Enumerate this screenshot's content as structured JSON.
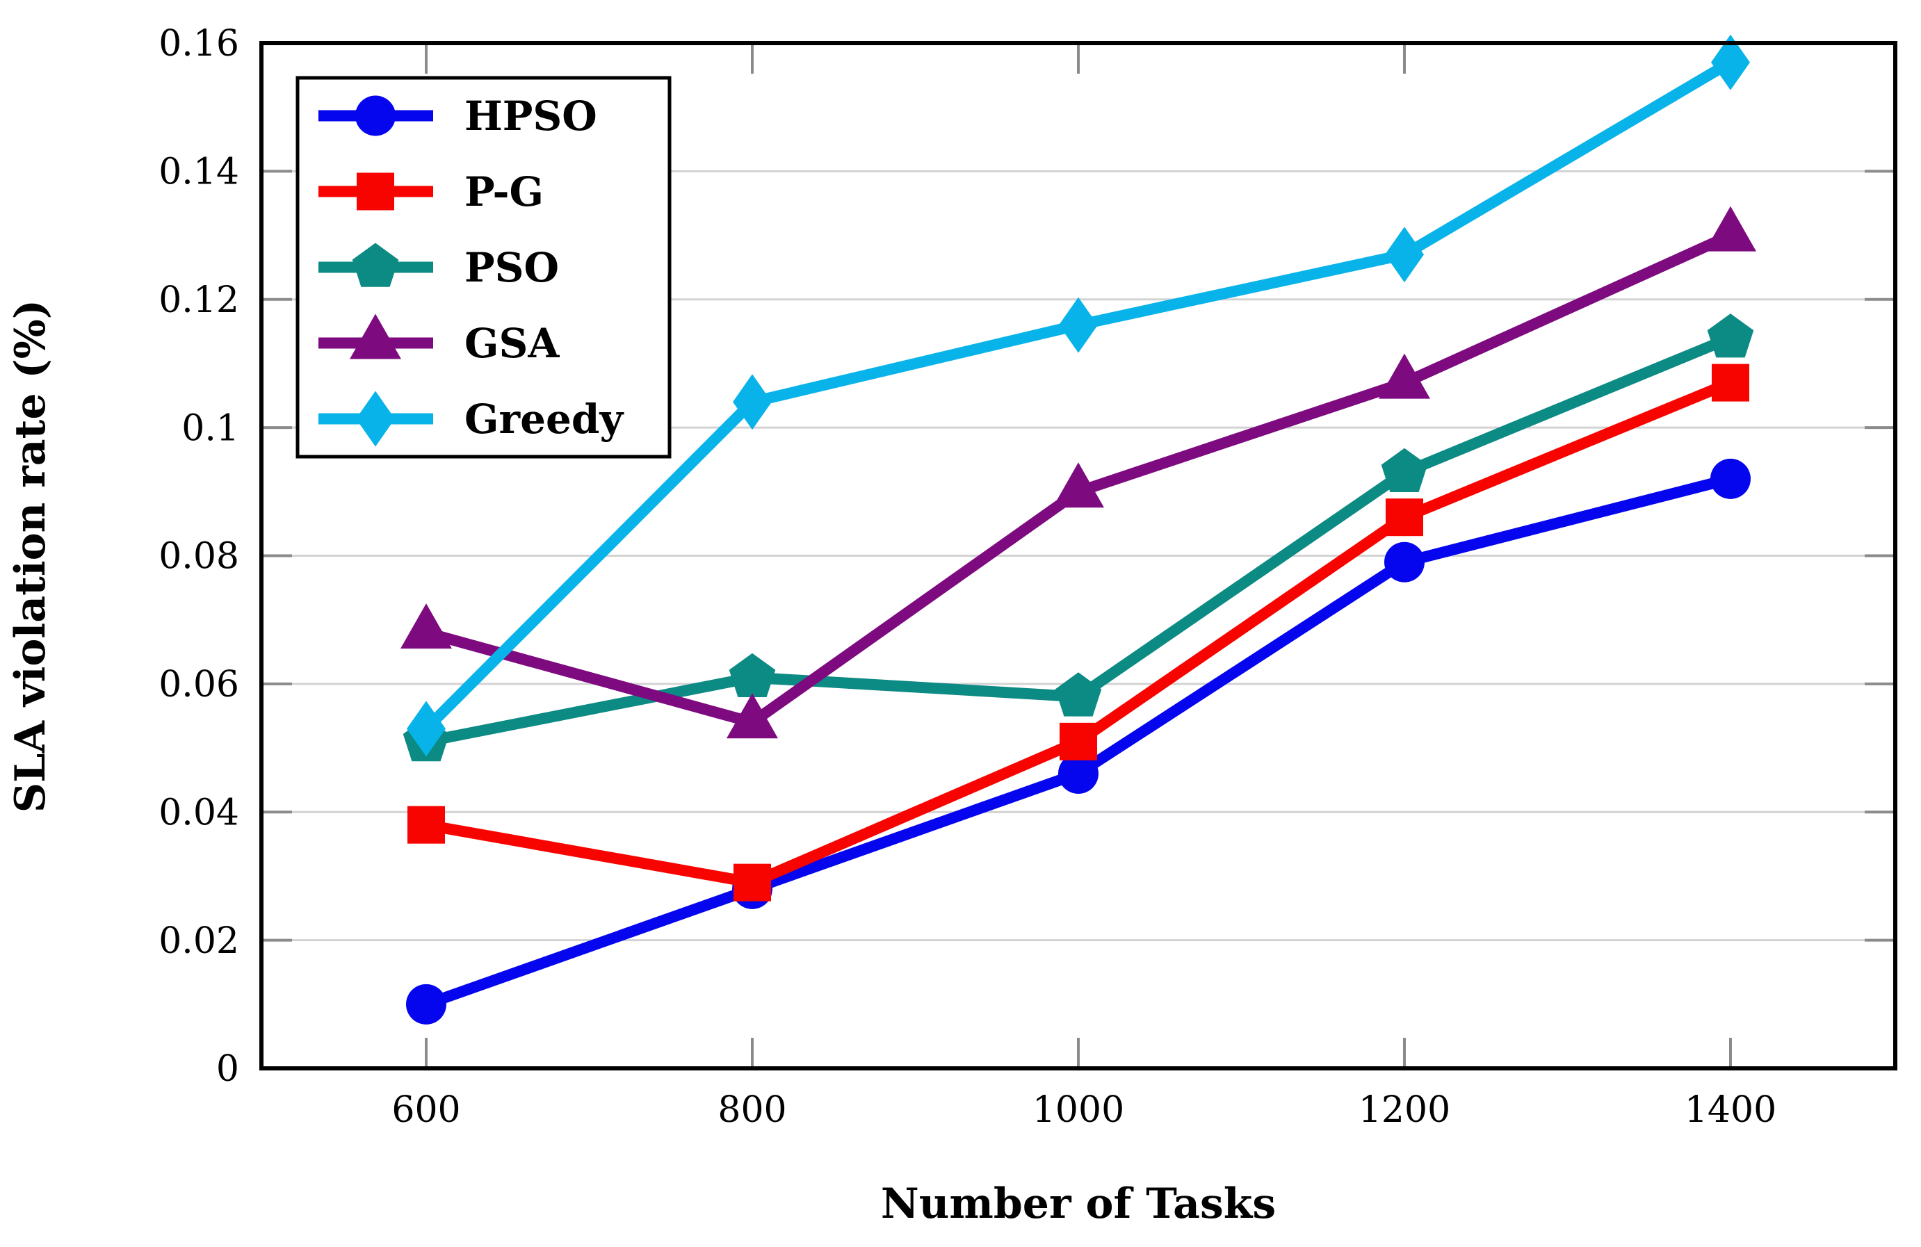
{
  "chart_data": {
    "type": "line",
    "title": "",
    "xlabel": "Number of Tasks",
    "ylabel": "SLA violation rate (%)",
    "x": [
      600,
      800,
      1000,
      1200,
      1400
    ],
    "x_tick_labels": [
      "600",
      "800",
      "1000",
      "1200",
      "1400"
    ],
    "y_tick_labels": [
      "0",
      "0.02",
      "0.04",
      "0.06",
      "0.08",
      "0.1",
      "0.12",
      "0.14",
      "0.16"
    ],
    "xlim": [
      500,
      1500
    ],
    "ylim": [
      0,
      0.16
    ],
    "grid": "horizontal",
    "grid_color": "#d3d3d3",
    "tick_color": "#8b8b8b",
    "frame_color": "#000000",
    "legend_position": "top-left",
    "series": [
      {
        "name": "HPSO",
        "color": "#0505ee",
        "marker": "circle",
        "values": [
          0.01,
          0.028,
          0.046,
          0.079,
          0.092
        ]
      },
      {
        "name": "P-G",
        "color": "#f80400",
        "marker": "square",
        "values": [
          0.038,
          0.029,
          0.051,
          0.086,
          0.107
        ]
      },
      {
        "name": "PSO",
        "color": "#0c8a84",
        "marker": "pentagon",
        "values": [
          0.051,
          0.061,
          0.058,
          0.093,
          0.114
        ]
      },
      {
        "name": "GSA",
        "color": "#7e0a80",
        "marker": "triangle",
        "values": [
          0.068,
          0.054,
          0.09,
          0.107,
          0.13
        ]
      },
      {
        "name": "Greedy",
        "color": "#08b3ea",
        "marker": "diamond",
        "values": [
          0.053,
          0.104,
          0.116,
          0.127,
          0.157
        ]
      }
    ]
  }
}
